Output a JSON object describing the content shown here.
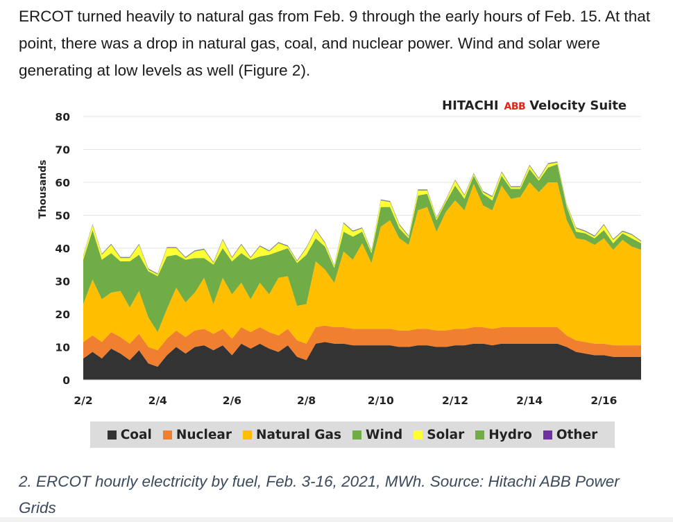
{
  "article": {
    "intro": "ERCOT turned heavily to natural gas from Feb. 9 through the early hours of Feb. 15. At that point, there was a drop in natural gas, coal, and nuclear power. Wind and solar were generating at low levels as well (Figure 2).",
    "caption": "2. ERCOT hourly electricity by fuel, Feb. 3-16, 2021, MWh. Source: Hitachi ABB Power Grids"
  },
  "brand": {
    "hitachi": "HITACHI",
    "abb": "ABB",
    "suite": "Velocity Suite"
  },
  "chart_data": {
    "type": "area",
    "stacked": true,
    "ylabel": "Thousands",
    "xlabel": "",
    "ylim": [
      0,
      80
    ],
    "yticks": [
      0,
      10,
      20,
      30,
      40,
      50,
      60,
      70,
      80
    ],
    "xlim": [
      2,
      17
    ],
    "xticks": [
      {
        "value": 2,
        "label": "2/2"
      },
      {
        "value": 4,
        "label": "2/4"
      },
      {
        "value": 6,
        "label": "2/6"
      },
      {
        "value": 8,
        "label": "2/8"
      },
      {
        "value": 10,
        "label": "2/10"
      },
      {
        "value": 12,
        "label": "2/12"
      },
      {
        "value": 14,
        "label": "2/14"
      },
      {
        "value": 16,
        "label": "2/16"
      }
    ],
    "grid": "horizontal",
    "legend_position": "bottom",
    "x": [
      2.0,
      2.25,
      2.5,
      2.75,
      3.0,
      3.25,
      3.5,
      3.75,
      4.0,
      4.25,
      4.5,
      4.75,
      5.0,
      5.25,
      5.5,
      5.75,
      6.0,
      6.25,
      6.5,
      6.75,
      7.0,
      7.25,
      7.5,
      7.75,
      8.0,
      8.25,
      8.5,
      8.75,
      9.0,
      9.25,
      9.5,
      9.75,
      10.0,
      10.25,
      10.5,
      10.75,
      11.0,
      11.25,
      11.5,
      11.75,
      12.0,
      12.25,
      12.5,
      12.75,
      13.0,
      13.25,
      13.5,
      13.75,
      14.0,
      14.25,
      14.5,
      14.75,
      15.0,
      15.25,
      15.5,
      15.75,
      16.0,
      16.25,
      16.5,
      16.75,
      17.0
    ],
    "series": [
      {
        "name": "Coal",
        "color": "#333333",
        "values": [
          6.5,
          8.5,
          6.5,
          9.5,
          8.0,
          6.0,
          9.0,
          5.0,
          4.0,
          7.5,
          10.0,
          8.0,
          10.0,
          10.5,
          9.0,
          10.5,
          7.5,
          11.0,
          9.5,
          11.0,
          9.5,
          8.5,
          10.5,
          7.0,
          6.0,
          11.0,
          11.5,
          11.0,
          11.0,
          10.5,
          10.5,
          10.5,
          10.5,
          10.5,
          10.0,
          10.0,
          10.5,
          10.5,
          10.0,
          10.0,
          10.5,
          10.5,
          11.0,
          11.0,
          10.5,
          11.0,
          11.0,
          11.0,
          11.0,
          11.0,
          11.0,
          11.0,
          10.0,
          8.5,
          8.0,
          7.5,
          7.5,
          7.0,
          7.0,
          7.0,
          7.0
        ]
      },
      {
        "name": "Nuclear",
        "color": "#f07f30",
        "values": [
          5.0,
          5.0,
          5.0,
          5.0,
          5.0,
          5.0,
          5.0,
          5.0,
          5.0,
          5.0,
          5.0,
          5.0,
          5.0,
          5.0,
          5.0,
          5.0,
          5.0,
          5.0,
          5.0,
          5.0,
          5.0,
          5.0,
          5.0,
          5.0,
          5.0,
          5.0,
          5.0,
          5.0,
          5.0,
          5.0,
          5.0,
          5.0,
          5.0,
          5.0,
          5.0,
          5.0,
          5.0,
          5.0,
          5.0,
          5.0,
          5.0,
          5.0,
          5.0,
          5.0,
          5.0,
          5.0,
          5.0,
          5.0,
          5.0,
          5.0,
          5.0,
          5.0,
          3.5,
          3.5,
          3.5,
          3.5,
          3.5,
          3.5,
          3.5,
          3.5,
          3.5
        ]
      },
      {
        "name": "Natural Gas",
        "color": "#ffbe00",
        "values": [
          11.5,
          17.0,
          13.0,
          12.0,
          14.0,
          11.0,
          13.0,
          9.0,
          5.5,
          9.0,
          13.0,
          10.5,
          11.5,
          15.5,
          9.0,
          15.5,
          13.5,
          13.5,
          10.0,
          13.5,
          11.5,
          17.5,
          16.0,
          10.5,
          12.0,
          20.0,
          17.0,
          13.5,
          23.0,
          21.0,
          26.0,
          20.0,
          31.0,
          33.0,
          28.0,
          26.0,
          36.0,
          37.0,
          30.0,
          36.0,
          39.0,
          36.0,
          43.5,
          37.0,
          36.0,
          43.0,
          39.0,
          39.5,
          44.0,
          41.0,
          44.0,
          44.0,
          35.0,
          31.0,
          31.0,
          30.0,
          32.0,
          29.0,
          32.0,
          30.0,
          29.0
        ]
      },
      {
        "name": "Wind",
        "color": "#70ad47",
        "values": [
          13.5,
          15.0,
          12.0,
          12.0,
          9.0,
          14.0,
          11.0,
          14.0,
          17.0,
          16.0,
          10.0,
          13.0,
          10.5,
          6.0,
          12.0,
          9.0,
          10.0,
          9.0,
          12.0,
          8.0,
          12.0,
          8.0,
          8.5,
          13.0,
          15.0,
          7.0,
          7.0,
          4.5,
          6.0,
          7.0,
          3.5,
          3.0,
          6.0,
          4.0,
          3.0,
          2.0,
          4.5,
          4.0,
          3.5,
          3.0,
          4.5,
          3.5,
          2.5,
          3.5,
          3.0,
          3.0,
          3.0,
          2.5,
          4.0,
          3.5,
          4.5,
          5.5,
          4.0,
          2.0,
          2.0,
          2.0,
          2.5,
          2.0,
          2.0,
          2.5,
          2.0
        ]
      },
      {
        "name": "Solar",
        "color": "#ffff33",
        "values": [
          1.0,
          1.5,
          1.5,
          2.5,
          1.0,
          1.0,
          3.0,
          0.5,
          0.5,
          2.5,
          2.0,
          0.5,
          2.0,
          2.5,
          0.5,
          2.5,
          1.0,
          2.5,
          0.5,
          3.0,
          1.0,
          2.5,
          0.5,
          0.5,
          2.0,
          2.5,
          1.0,
          0.5,
          2.5,
          1.5,
          1.0,
          0.5,
          2.0,
          1.5,
          1.0,
          0.5,
          1.5,
          1.0,
          0.5,
          0.5,
          1.5,
          1.0,
          0.5,
          0.5,
          1.0,
          1.0,
          0.5,
          0.5,
          1.0,
          0.5,
          1.0,
          0.5,
          0.5,
          1.0,
          0.5,
          0.5,
          1.5,
          1.0,
          0.5,
          1.0,
          0.5
        ]
      },
      {
        "name": "Hydro",
        "color": "#70ad47",
        "values": [
          0.2,
          0.2,
          0.2,
          0.2,
          0.2,
          0.2,
          0.2,
          0.2,
          0.2,
          0.2,
          0.2,
          0.2,
          0.2,
          0.2,
          0.2,
          0.2,
          0.2,
          0.2,
          0.2,
          0.2,
          0.2,
          0.2,
          0.2,
          0.2,
          0.2,
          0.2,
          0.2,
          0.2,
          0.2,
          0.2,
          0.2,
          0.2,
          0.2,
          0.2,
          0.2,
          0.2,
          0.2,
          0.2,
          0.2,
          0.2,
          0.2,
          0.2,
          0.2,
          0.2,
          0.2,
          0.2,
          0.2,
          0.2,
          0.2,
          0.2,
          0.2,
          0.2,
          0.2,
          0.2,
          0.2,
          0.2,
          0.2,
          0.2,
          0.2,
          0.2,
          0.2
        ]
      },
      {
        "name": "Other",
        "color": "#7030a0",
        "values": [
          0.1,
          0.1,
          0.1,
          0.1,
          0.1,
          0.1,
          0.1,
          0.1,
          0.1,
          0.1,
          0.1,
          0.1,
          0.1,
          0.1,
          0.1,
          0.1,
          0.1,
          0.1,
          0.1,
          0.1,
          0.1,
          0.1,
          0.1,
          0.1,
          0.1,
          0.1,
          0.1,
          0.1,
          0.1,
          0.1,
          0.1,
          0.1,
          0.1,
          0.1,
          0.1,
          0.1,
          0.1,
          0.1,
          0.1,
          0.1,
          0.1,
          0.1,
          0.1,
          0.1,
          0.1,
          0.1,
          0.1,
          0.1,
          0.1,
          0.1,
          0.1,
          0.1,
          0.1,
          0.1,
          0.1,
          0.1,
          0.1,
          0.1,
          0.1,
          0.1,
          0.1
        ]
      }
    ]
  }
}
